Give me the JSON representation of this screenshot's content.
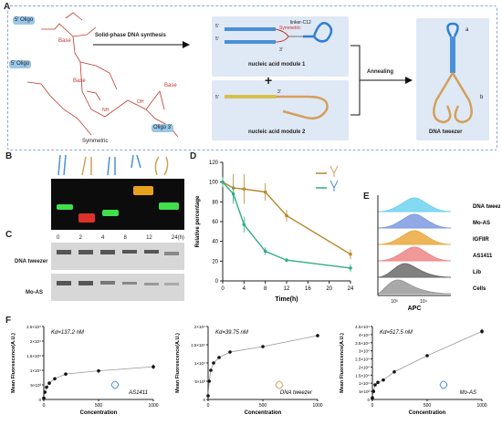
{
  "panel_labels": {
    "A": "A",
    "B": "B",
    "C": "C",
    "D": "D",
    "E": "E",
    "F": "F"
  },
  "panelA": {
    "oligo_5": "5' Oligo",
    "oligo_3": "Oligo 3'",
    "base": "Base",
    "symmetric_label": "Symmetric",
    "step1": "Solid-phase DNA synthesis",
    "module1": "nucleic acid module 1",
    "module2": "nucleic acid module 2",
    "linker": "linker-C12",
    "symmetric_tag": "Symmetric",
    "step2": "Annealing",
    "product": "DNA tweezer",
    "arm_a": "a",
    "arm_b": "b",
    "plus": "+",
    "p5": "5'",
    "p3": "3'",
    "nh": "NH",
    "oh": "OH"
  },
  "panelC": {
    "times": [
      "0",
      "2",
      "4",
      "8",
      "12",
      "24(h)"
    ],
    "rows": [
      "DNA tweezer",
      "Mo-AS"
    ]
  },
  "panelD": {
    "chart_data": {
      "type": "line",
      "xlabel": "Time(h)",
      "ylabel": "Relative percentage",
      "xlim": [
        0,
        24
      ],
      "ylim": [
        0,
        120
      ],
      "xticks": [
        0,
        4,
        8,
        12,
        16,
        20,
        24
      ],
      "yticks": [
        0,
        20,
        40,
        60,
        80,
        100,
        120
      ],
      "series": [
        {
          "color": "#b8862b",
          "x": [
            0,
            2,
            4,
            8,
            12,
            24
          ],
          "y": [
            100,
            94,
            93,
            90,
            66,
            27
          ],
          "err": [
            5,
            14,
            15,
            9,
            6,
            5
          ]
        },
        {
          "color": "#2fae88",
          "x": [
            0,
            2,
            4,
            8,
            12,
            24
          ],
          "y": [
            100,
            88,
            57,
            30,
            21,
            13
          ],
          "err": [
            5,
            10,
            8,
            4,
            2,
            4
          ]
        }
      ]
    }
  },
  "panelE": {
    "rows": [
      "DNA tweezer",
      "Mo-AS",
      "IGFIIR",
      "AS1411",
      "Lib",
      "Cells"
    ],
    "colors": [
      "#6fd3ee",
      "#7e9be0",
      "#eba93d",
      "#ef8686",
      "#6b6b6b",
      "#9a9a9a"
    ],
    "xlabel": "APC",
    "ticks": [
      "10³",
      "10⁴"
    ]
  },
  "panelF": {
    "ylabel": "Mean Fluorescence(A.U.)",
    "xlabel": "Concentration",
    "charts": [
      {
        "kd": "Kd=137.2 nM",
        "name": "AS1411",
        "yticks": [
          "0",
          "5×10³",
          "1×10⁴",
          "1.5×10⁴",
          "2×10⁴",
          "2.5×10⁴"
        ],
        "ymax": 25000,
        "x": [
          0,
          10,
          25,
          50,
          100,
          200,
          500,
          1000
        ],
        "y": [
          500,
          2500,
          4200,
          5600,
          7100,
          8700,
          9800,
          11200
        ],
        "err": [
          0,
          0,
          0,
          0,
          0,
          0,
          0,
          800
        ]
      },
      {
        "kd": "Kd=39.75 nM",
        "name": "DNA tweezer",
        "yticks": [
          "0",
          "5×10³",
          "1×10⁴",
          "1.5×10⁴",
          "2×10⁴"
        ],
        "ymax": 20000,
        "x": [
          0,
          10,
          25,
          50,
          100,
          200,
          500,
          1000
        ],
        "y": [
          1000,
          5000,
          8000,
          10000,
          11500,
          13000,
          14500,
          17500
        ],
        "err": [
          0,
          0,
          0,
          0,
          0,
          0,
          0,
          500
        ]
      },
      {
        "kd": "Kd=517.5 nM",
        "name": "Mo-AS",
        "yticks": [
          "0",
          "5×10³",
          "1×10⁴",
          "1.5×10⁴",
          "2×10⁴",
          "2.5×10⁴",
          "3×10⁴",
          "3.5×10⁴",
          "4×10⁴",
          "4.5×10⁴"
        ],
        "ymax": 45000,
        "x": [
          0,
          10,
          25,
          50,
          100,
          200,
          500,
          1000
        ],
        "y": [
          1000,
          5000,
          9000,
          10500,
          12000,
          17000,
          27000,
          42000
        ],
        "err": [
          0,
          0,
          0,
          0,
          0,
          0,
          0,
          1500
        ]
      }
    ],
    "xticks": [
      "0",
      "500",
      "1000"
    ]
  }
}
